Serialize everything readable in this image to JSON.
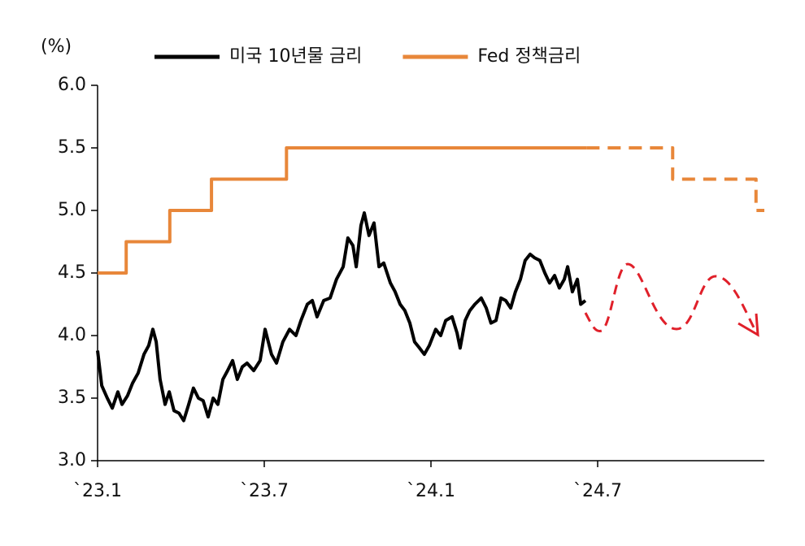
{
  "chart_data": {
    "type": "line",
    "y_axis_label": "(%)",
    "xlim": [
      0,
      24
    ],
    "xticks": [
      {
        "value": 0,
        "label": "`23.1"
      },
      {
        "value": 6,
        "label": "`23.7"
      },
      {
        "value": 12,
        "label": "`24.1"
      },
      {
        "value": 18,
        "label": "`24.7"
      }
    ],
    "ylim": [
      3,
      6
    ],
    "yticks": [
      {
        "value": 3,
        "label": "3.0"
      },
      {
        "value": 3.5,
        "label": "3.5"
      },
      {
        "value": 4,
        "label": "4.0"
      },
      {
        "value": 4.5,
        "label": "4.5"
      },
      {
        "value": 5,
        "label": "5.0"
      },
      {
        "value": 5.5,
        "label": "5.5"
      },
      {
        "value": 6,
        "label": "6.0"
      }
    ],
    "series": [
      {
        "name": "미국 10년물 금리",
        "color": "#000000",
        "dash": false,
        "x": [
          0,
          0.15,
          0.35,
          0.53,
          0.73,
          0.88,
          1.08,
          1.26,
          1.46,
          1.67,
          1.84,
          1.99,
          2.11,
          2.25,
          2.43,
          2.58,
          2.75,
          2.93,
          3.1,
          3.28,
          3.45,
          3.63,
          3.8,
          3.98,
          4.16,
          4.33,
          4.51,
          4.68,
          4.86,
          5.03,
          5.21,
          5.38,
          5.62,
          5.85,
          6.03,
          6.26,
          6.44,
          6.67,
          6.91,
          7.14,
          7.32,
          7.55,
          7.73,
          7.9,
          8.14,
          8.37,
          8.6,
          8.84,
          9.01,
          9.19,
          9.31,
          9.48,
          9.6,
          9.77,
          9.95,
          10.13,
          10.3,
          10.54,
          10.71,
          10.89,
          11.06,
          11.24,
          11.41,
          11.59,
          11.76,
          11.94,
          12.17,
          12.35,
          12.53,
          12.76,
          12.94,
          13.05,
          13.23,
          13.4,
          13.58,
          13.81,
          13.99,
          14.16,
          14.34,
          14.52,
          14.69,
          14.87,
          15.04,
          15.22,
          15.39,
          15.57,
          15.74,
          15.92,
          16.1,
          16.27,
          16.45,
          16.62,
          16.8,
          16.92,
          17.09,
          17.27,
          17.39,
          17.56
        ],
        "values": [
          3.88,
          3.6,
          3.5,
          3.42,
          3.55,
          3.45,
          3.52,
          3.62,
          3.7,
          3.85,
          3.92,
          4.05,
          3.95,
          3.65,
          3.45,
          3.55,
          3.4,
          3.38,
          3.32,
          3.45,
          3.58,
          3.5,
          3.48,
          3.35,
          3.5,
          3.45,
          3.65,
          3.72,
          3.8,
          3.65,
          3.75,
          3.78,
          3.72,
          3.8,
          4.05,
          3.85,
          3.78,
          3.95,
          4.05,
          4.0,
          4.12,
          4.25,
          4.28,
          4.15,
          4.28,
          4.3,
          4.45,
          4.55,
          4.78,
          4.72,
          4.55,
          4.88,
          4.98,
          4.8,
          4.9,
          4.55,
          4.58,
          4.42,
          4.35,
          4.25,
          4.2,
          4.1,
          3.95,
          3.9,
          3.85,
          3.92,
          4.05,
          4.0,
          4.12,
          4.15,
          4.02,
          3.9,
          4.12,
          4.2,
          4.25,
          4.3,
          4.22,
          4.1,
          4.12,
          4.3,
          4.28,
          4.22,
          4.35,
          4.45,
          4.6,
          4.65,
          4.62,
          4.6,
          4.5,
          4.42,
          4.48,
          4.38,
          4.45,
          4.55,
          4.35,
          4.45,
          4.25,
          4.28
        ]
      },
      {
        "name": "Fed 정책금리",
        "color": "#e8873a",
        "dash": false,
        "x": [
          0,
          1.03,
          1.03,
          2.6,
          2.6,
          4.1,
          4.1,
          6.8,
          6.8,
          17.6
        ],
        "values": [
          4.5,
          4.5,
          4.75,
          4.75,
          5.0,
          5.0,
          5.25,
          5.25,
          5.5,
          5.5
        ]
      },
      {
        "color": "#e8873a",
        "dash": true,
        "x": [
          17.6,
          20.7,
          20.7,
          23.7,
          23.7,
          24
        ],
        "values": [
          5.5,
          5.5,
          5.25,
          5.25,
          5.0,
          5.0
        ]
      }
    ]
  }
}
